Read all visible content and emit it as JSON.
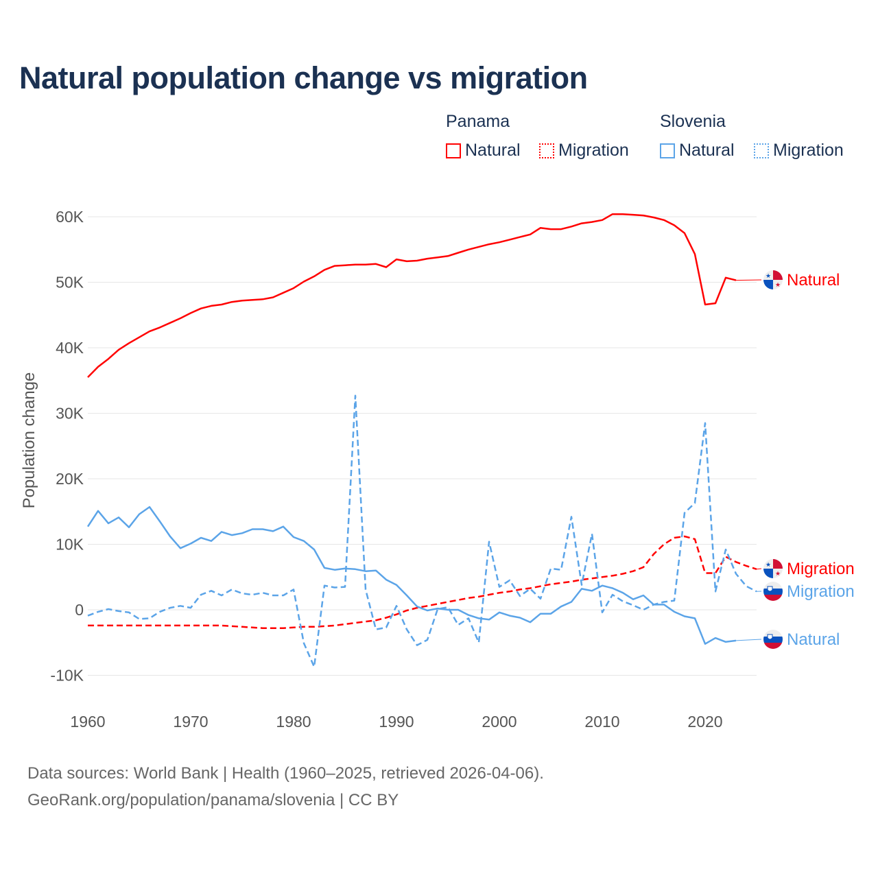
{
  "title": "Natural population change vs migration",
  "legend": {
    "groups": [
      {
        "name": "Panama",
        "items": [
          "Natural",
          "Migration"
        ]
      },
      {
        "name": "Slovenia",
        "items": [
          "Natural",
          "Migration"
        ]
      }
    ]
  },
  "colors": {
    "panama": "#ff0000",
    "slovenia": "#5ba4e8",
    "title": "#1b3152"
  },
  "footer": {
    "line1": "Data sources: World Bank | Health (1960–2025, retrieved 2026-04-06).",
    "line2": "GeoRank.org/population/panama/slovenia | CC BY"
  },
  "chart_data": {
    "type": "line",
    "title": "Natural population change vs migration",
    "xlabel": "",
    "ylabel": "Population change",
    "xlim": [
      1960,
      2025
    ],
    "ylim": [
      -10000,
      60000
    ],
    "x_ticks": [
      "1960",
      "1970",
      "1980",
      "1990",
      "2000",
      "2010",
      "2020"
    ],
    "y_ticks": [
      {
        "v": -10000,
        "label": "-10K"
      },
      {
        "v": 0,
        "label": "0"
      },
      {
        "v": 10000,
        "label": "10K"
      },
      {
        "v": 20000,
        "label": "20K"
      },
      {
        "v": 30000,
        "label": "30K"
      },
      {
        "v": 40000,
        "label": "40K"
      },
      {
        "v": 50000,
        "label": "50K"
      },
      {
        "v": 60000,
        "label": "60K"
      }
    ],
    "grid": true,
    "legend_placement": "top-right",
    "series": [
      {
        "name": "Panama Natural",
        "label": "Natural",
        "country": "panama",
        "style": "solid",
        "start": 1960,
        "values": [
          35500,
          37100,
          38300,
          39700,
          40700,
          41600,
          42500,
          43100,
          43800,
          44500,
          45300,
          46000,
          46400,
          46600,
          47000,
          47200,
          47300,
          47400,
          47700,
          48400,
          49100,
          50100,
          50900,
          51900,
          52500,
          52600,
          52700,
          52700,
          52800,
          52300,
          53500,
          53200,
          53300,
          53600,
          53800,
          54000,
          54500,
          55000,
          55400,
          55800,
          56100,
          56500,
          56900,
          57300,
          58300,
          58100,
          58100,
          58500,
          59000,
          59200,
          59500,
          60400,
          60400,
          60300,
          60200,
          59900,
          59500,
          58700,
          57500,
          54300,
          46600,
          46800,
          50700,
          50300
        ]
      },
      {
        "name": "Panama Migration",
        "label": "Migration",
        "country": "panama",
        "style": "dashed",
        "start": 1960,
        "values": [
          -2400,
          -2400,
          -2400,
          -2400,
          -2400,
          -2400,
          -2400,
          -2400,
          -2400,
          -2400,
          -2400,
          -2400,
          -2400,
          -2400,
          -2500,
          -2600,
          -2700,
          -2800,
          -2800,
          -2800,
          -2700,
          -2600,
          -2600,
          -2500,
          -2400,
          -2200,
          -2000,
          -1800,
          -1600,
          -1200,
          -700,
          -100,
          300,
          600,
          900,
          1200,
          1500,
          1800,
          2000,
          2300,
          2600,
          2800,
          3100,
          3300,
          3600,
          3900,
          4100,
          4300,
          4600,
          4800,
          5000,
          5200,
          5500,
          5900,
          6500,
          8500,
          10000,
          11000,
          11200,
          10800,
          5600,
          5600,
          8100,
          7300,
          6700,
          6200
        ]
      },
      {
        "name": "Slovenia Natural",
        "label": "Natural",
        "country": "slovenia",
        "style": "solid",
        "start": 1960,
        "values": [
          12700,
          15100,
          13200,
          14100,
          12600,
          14600,
          15700,
          13500,
          11200,
          9400,
          10100,
          11000,
          10500,
          11900,
          11400,
          11700,
          12300,
          12300,
          12000,
          12700,
          11100,
          10500,
          9200,
          6400,
          6100,
          6300,
          6200,
          5900,
          6000,
          4600,
          3800,
          2200,
          500,
          -100,
          200,
          0,
          0,
          -800,
          -1300,
          -1500,
          -400,
          -900,
          -1200,
          -1900,
          -600,
          -600,
          500,
          1200,
          3200,
          2900,
          3700,
          3300,
          2600,
          1600,
          2200,
          800,
          800,
          -300,
          -1000,
          -1300,
          -5200,
          -4300,
          -4900,
          -4700
        ]
      },
      {
        "name": "Slovenia Migration",
        "label": "Migration",
        "country": "slovenia",
        "style": "dashed",
        "start": 1960,
        "values": [
          -900,
          -300,
          100,
          -200,
          -400,
          -1400,
          -1300,
          -300,
          300,
          600,
          300,
          2300,
          2900,
          2200,
          3100,
          2500,
          2300,
          2600,
          2200,
          2200,
          3100,
          -5100,
          -8700,
          3700,
          3400,
          3500,
          32700,
          3100,
          -3000,
          -2700,
          600,
          -3000,
          -5400,
          -4600,
          100,
          400,
          -2300,
          -1300,
          -5000,
          10400,
          3500,
          4500,
          2100,
          3200,
          1700,
          6300,
          6100,
          14200,
          3800,
          11600,
          -400,
          2300,
          1300,
          700,
          0,
          800,
          1200,
          1400,
          14800,
          16300,
          28500,
          2800,
          9200,
          5500,
          3600,
          2800
        ]
      }
    ]
  }
}
